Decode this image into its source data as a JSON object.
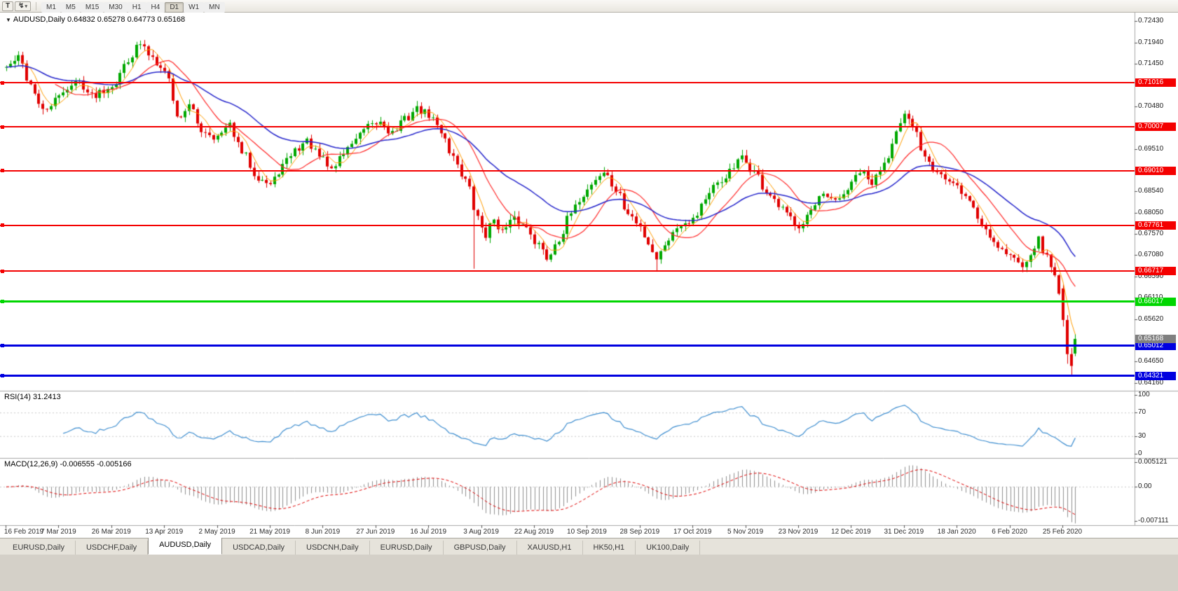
{
  "toolbar": {
    "text_tool_label": "T",
    "draw_tool_label": "↯",
    "timeframes": [
      "M1",
      "M5",
      "M15",
      "M30",
      "H1",
      "H4",
      "D1",
      "W1",
      "MN"
    ],
    "active_timeframe": "D1"
  },
  "chart": {
    "symbol_label": "AUDUSD,Daily",
    "ohlc_label": "0.64832 0.65278 0.64773 0.65168",
    "ohlc": {
      "open": 0.64832,
      "high": 0.65278,
      "low": 0.64773,
      "close": 0.65168
    },
    "axis_ticks": [
      {
        "label": "0.72430",
        "price": 0.7243
      },
      {
        "label": "0.71940",
        "price": 0.7194
      },
      {
        "label": "0.71450",
        "price": 0.7145
      },
      {
        "label": "0.70480",
        "price": 0.7048
      },
      {
        "label": "0.69510",
        "price": 0.6951
      },
      {
        "label": "0.68540",
        "price": 0.6854
      },
      {
        "label": "0.68050",
        "price": 0.6805
      },
      {
        "label": "0.67570",
        "price": 0.6757
      },
      {
        "label": "0.67080",
        "price": 0.6708
      },
      {
        "label": "0.66590",
        "price": 0.6659
      },
      {
        "label": "0.66110",
        "price": 0.6611
      },
      {
        "label": "0.65620",
        "price": 0.6562
      },
      {
        "label": "0.64650",
        "price": 0.6465
      },
      {
        "label": "0.64160",
        "price": 0.6416
      }
    ],
    "hlines": [
      {
        "label": "0.71016",
        "price": 0.71016,
        "color": "#f40000",
        "width": 2
      },
      {
        "label": "0.70007",
        "price": 0.70007,
        "color": "#f40000",
        "width": 2
      },
      {
        "label": "0.69010",
        "price": 0.6901,
        "color": "#f40000",
        "width": 2
      },
      {
        "label": "0.67761",
        "price": 0.67761,
        "color": "#f40000",
        "width": 2
      },
      {
        "label": "0.66717",
        "price": 0.66717,
        "color": "#f40000",
        "width": 2
      },
      {
        "label": "0.66017",
        "price": 0.66017,
        "color": "#00d600",
        "width": 3
      },
      {
        "label": "0.65012",
        "price": 0.65012,
        "color": "#0000e0",
        "width": 3
      },
      {
        "label": "0.64321",
        "price": 0.64321,
        "color": "#0000e0",
        "width": 3
      }
    ],
    "current_price": {
      "label": "0.65168",
      "price": 0.65168,
      "color": "#808080"
    },
    "dates": [
      "16 Feb 2019",
      "7 Mar 2019",
      "26 Mar 2019",
      "13 Apr 2019",
      "2 May 2019",
      "21 May 2019",
      "8 Jun 2019",
      "27 Jun 2019",
      "16 Jul 2019",
      "3 Aug 2019",
      "22 Aug 2019",
      "10 Sep 2019",
      "28 Sep 2019",
      "17 Oct 2019",
      "5 Nov 2019",
      "23 Nov 2019",
      "12 Dec 2019",
      "31 Dec 2019",
      "18 Jan 2020",
      "6 Feb 2020",
      "25 Feb 2020"
    ],
    "candles": {
      "count": 264,
      "up_color": "#00a800",
      "down_color": "#e00000",
      "anchors": [
        [
          0,
          0.7138
        ],
        [
          3,
          0.7158
        ],
        [
          6,
          0.7098
        ],
        [
          9,
          0.7035
        ],
        [
          12,
          0.706
        ],
        [
          15,
          0.7092
        ],
        [
          18,
          0.7105
        ],
        [
          21,
          0.7072
        ],
        [
          24,
          0.7088
        ],
        [
          27,
          0.7105
        ],
        [
          30,
          0.7158
        ],
        [
          33,
          0.719
        ],
        [
          35,
          0.7168
        ],
        [
          38,
          0.7145
        ],
        [
          40,
          0.711
        ],
        [
          42,
          0.7022
        ],
        [
          45,
          0.7048
        ],
        [
          48,
          0.6995
        ],
        [
          52,
          0.6978
        ],
        [
          55,
          0.7002
        ],
        [
          58,
          0.6942
        ],
        [
          62,
          0.6888
        ],
        [
          65,
          0.6868
        ],
        [
          68,
          0.6912
        ],
        [
          71,
          0.6948
        ],
        [
          74,
          0.6968
        ],
        [
          77,
          0.6932
        ],
        [
          80,
          0.6905
        ],
        [
          83,
          0.6942
        ],
        [
          86,
          0.6975
        ],
        [
          89,
          0.6998
        ],
        [
          92,
          0.7012
        ],
        [
          95,
          0.6988
        ],
        [
          98,
          0.7018
        ],
        [
          101,
          0.7042
        ],
        [
          104,
          0.7028
        ],
        [
          107,
          0.6992
        ],
        [
          110,
          0.6932
        ],
        [
          113,
          0.688
        ],
        [
          116,
          0.6792
        ],
        [
          118,
          0.6755
        ],
        [
          120,
          0.6792
        ],
        [
          122,
          0.6762
        ],
        [
          125,
          0.6788
        ],
        [
          128,
          0.6772
        ],
        [
          131,
          0.6732
        ],
        [
          133,
          0.6702
        ],
        [
          136,
          0.6748
        ],
        [
          139,
          0.6802
        ],
        [
          142,
          0.6848
        ],
        [
          145,
          0.6882
        ],
        [
          147,
          0.6898
        ],
        [
          150,
          0.6856
        ],
        [
          153,
          0.6802
        ],
        [
          156,
          0.6772
        ],
        [
          158,
          0.6736
        ],
        [
          160,
          0.6702
        ],
        [
          163,
          0.6748
        ],
        [
          166,
          0.6782
        ],
        [
          169,
          0.6792
        ],
        [
          172,
          0.6838
        ],
        [
          175,
          0.6868
        ],
        [
          178,
          0.6898
        ],
        [
          181,
          0.6928
        ],
        [
          184,
          0.6898
        ],
        [
          187,
          0.6852
        ],
        [
          190,
          0.6818
        ],
        [
          193,
          0.6792
        ],
        [
          195,
          0.6778
        ],
        [
          198,
          0.6808
        ],
        [
          201,
          0.6842
        ],
        [
          204,
          0.6828
        ],
        [
          207,
          0.6858
        ],
        [
          210,
          0.6898
        ],
        [
          213,
          0.6872
        ],
        [
          216,
          0.6922
        ],
        [
          219,
          0.6988
        ],
        [
          221,
          0.7022
        ],
        [
          223,
          0.7002
        ],
        [
          226,
          0.6938
        ],
        [
          229,
          0.6902
        ],
        [
          232,
          0.6872
        ],
        [
          234,
          0.6862
        ],
        [
          237,
          0.6832
        ],
        [
          240,
          0.6778
        ],
        [
          243,
          0.6742
        ],
        [
          245,
          0.6722
        ],
        [
          247,
          0.6708
        ],
        [
          250,
          0.6682
        ],
        [
          252,
          0.6718
        ],
        [
          254,
          0.6742
        ],
        [
          256,
          0.6702
        ],
        [
          258,
          0.6662
        ],
        [
          259,
          0.6628
        ],
        [
          260,
          0.656
        ],
        [
          261,
          0.648
        ],
        [
          262,
          0.6452
        ],
        [
          263,
          0.65168
        ]
      ],
      "overrides": {
        "115": {
          "l": 0.6677
        },
        "160": {
          "l": 0.6671
        },
        "260": {
          "o": 0.6632,
          "h": 0.6641,
          "l": 0.6545,
          "c": 0.656
        },
        "261": {
          "o": 0.656,
          "h": 0.6571,
          "l": 0.646,
          "c": 0.6482
        },
        "262": {
          "o": 0.6482,
          "h": 0.6496,
          "l": 0.6434,
          "c": 0.6455
        },
        "263": {
          "o": 0.64832,
          "h": 0.65278,
          "l": 0.64773,
          "c": 0.65168
        }
      }
    },
    "moving_averages": [
      {
        "name": "ma-fast",
        "type": "sma",
        "period": 5,
        "color": "#ff9d00",
        "width": 1
      },
      {
        "name": "ma-mid",
        "type": "sma",
        "period": 13,
        "color": "#ff2a2a",
        "width": 1.2
      },
      {
        "name": "ma-slow",
        "type": "ema",
        "period": 34,
        "color": "#2626cc",
        "width": 1.5
      }
    ]
  },
  "rsi": {
    "label": "RSI(14) 31.2413",
    "period": 14,
    "color": "#3e8ed0",
    "levels": [
      {
        "label": "100",
        "value": 100
      },
      {
        "label": "70",
        "value": 70
      },
      {
        "label": "30",
        "value": 30
      },
      {
        "label": "0",
        "value": 0
      }
    ]
  },
  "macd": {
    "label": "MACD(12,26,9) -0.006555 -0.005166",
    "histogram_color": "#8f8f8f",
    "signal_color": "#e00000",
    "levels": [
      {
        "label": "0.005121",
        "value": 0.005121
      },
      {
        "label": "0.00",
        "value": 0
      },
      {
        "label": "-0.007111",
        "value": -0.007111
      }
    ]
  },
  "tabs": {
    "active_index": 2,
    "items": [
      {
        "label": "EURUSD,Daily"
      },
      {
        "label": "USDCHF,Daily"
      },
      {
        "label": "AUDUSD,Daily"
      },
      {
        "label": "USDCAD,Daily"
      },
      {
        "label": "USDCNH,Daily"
      },
      {
        "label": "EURUSD,Daily"
      },
      {
        "label": "GBPUSD,Daily"
      },
      {
        "label": "XAUUSD,H1"
      },
      {
        "label": "HK50,H1"
      },
      {
        "label": "UK100,Daily"
      }
    ]
  }
}
